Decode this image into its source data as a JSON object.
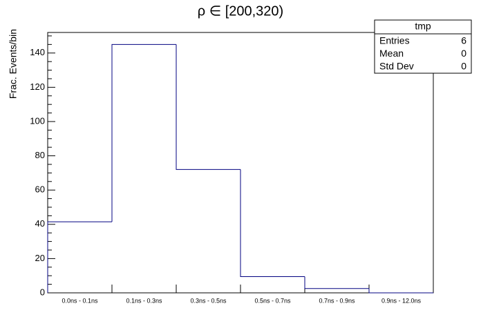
{
  "chart_data": {
    "type": "histogram",
    "title": "ρ ∈ [200,320)",
    "y_label": "Frac. Events/bin",
    "categories": [
      "0.0ns - 0.1ns",
      "0.1ns - 0.3ns",
      "0.3ns - 0.5ns",
      "0.5ns - 0.7ns",
      "0.7ns - 0.9ns",
      "0.9ns - 12.0ns"
    ],
    "values": [
      41.5,
      145,
      72,
      9.5,
      2.5,
      0
    ],
    "color": "#000080",
    "ylim": [
      0,
      152
    ],
    "yticks": [
      0,
      20,
      40,
      60,
      80,
      100,
      120,
      140
    ],
    "stats": {
      "title": "tmp",
      "rows": [
        [
          "Entries",
          6
        ],
        [
          "Mean",
          0
        ],
        [
          "Std Dev",
          0
        ]
      ]
    }
  }
}
